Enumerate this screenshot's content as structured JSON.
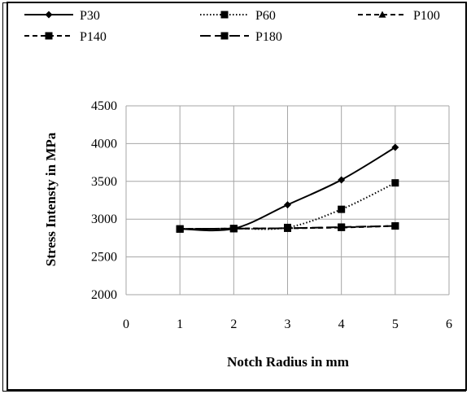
{
  "chart_data": {
    "type": "line",
    "title": "",
    "xlabel": "Notch Radius in mm",
    "ylabel": "Stress Intensty in MPa",
    "xlim": [
      0,
      6
    ],
    "ylim": [
      2000,
      4500
    ],
    "x_ticks": [
      0,
      1,
      2,
      3,
      4,
      5,
      6
    ],
    "y_ticks": [
      2000,
      2500,
      3000,
      3500,
      4000,
      4500
    ],
    "grid": true,
    "legend_position": "top",
    "series": [
      {
        "name": "P30",
        "x": [
          1,
          2,
          3,
          4,
          5
        ],
        "values": [
          2870,
          2875,
          3190,
          3520,
          3950
        ],
        "line_style": "solid",
        "marker": "diamond"
      },
      {
        "name": "P60",
        "x": [
          1,
          2,
          3,
          4,
          5
        ],
        "values": [
          2870,
          2875,
          2890,
          3130,
          3480
        ],
        "line_style": "dotted",
        "marker": "square"
      },
      {
        "name": "P100",
        "x": [
          1,
          2,
          3,
          4,
          5
        ],
        "values": [
          2870,
          2875,
          2880,
          2890,
          2910
        ],
        "line_style": "dashed",
        "marker": "triangle"
      },
      {
        "name": "P140",
        "x": [
          1,
          2,
          3,
          4,
          5
        ],
        "values": [
          2870,
          2875,
          2880,
          2890,
          2910
        ],
        "line_style": "dashed",
        "marker": "square"
      },
      {
        "name": "P180",
        "x": [
          1,
          2,
          3,
          4,
          5
        ],
        "values": [
          2870,
          2875,
          2880,
          2895,
          2910
        ],
        "line_style": "longdash",
        "marker": "square"
      }
    ]
  }
}
